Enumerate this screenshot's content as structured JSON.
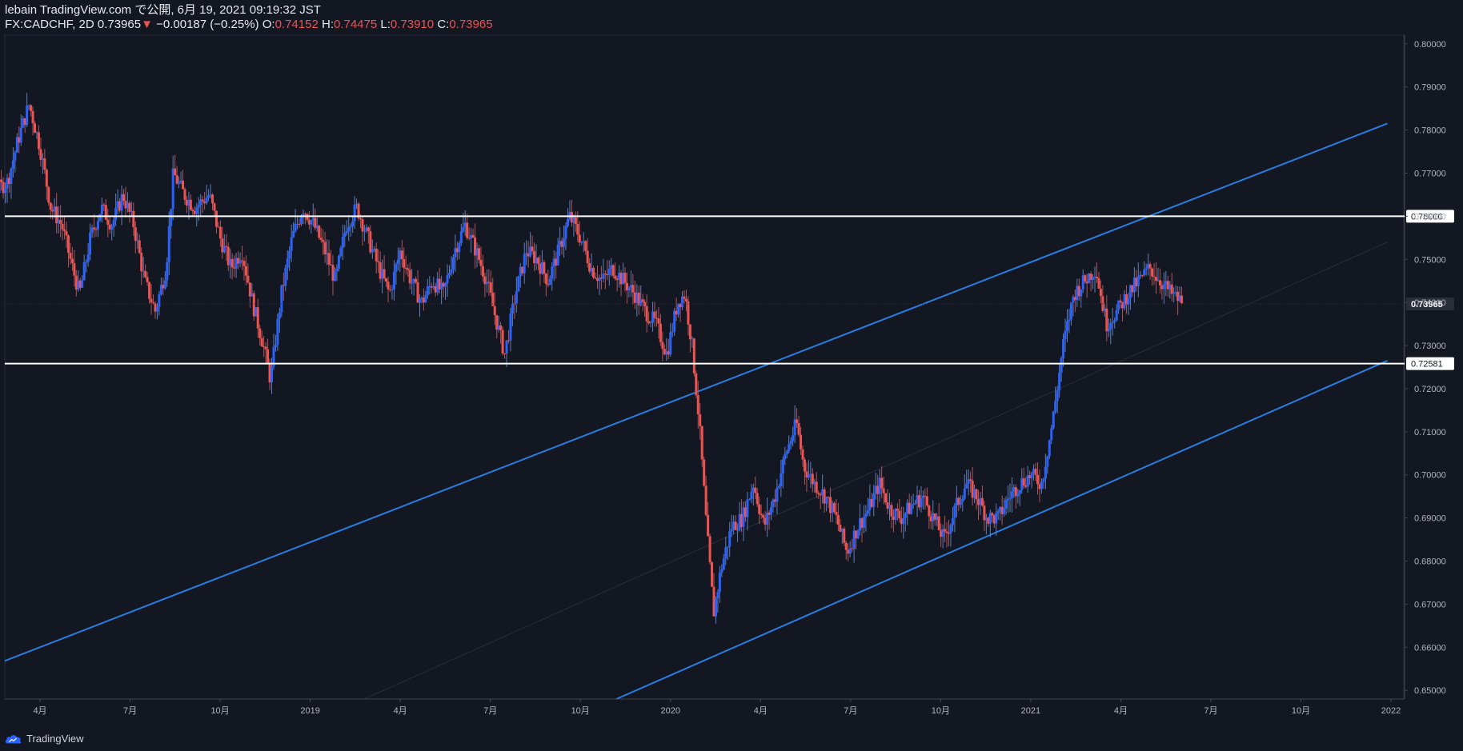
{
  "header": {
    "published": "lebain TradingView.com で公開, 6月 19, 2021 09:19:32 JST",
    "symbol": "FX:CADCHF, 2D",
    "last": "0.73965",
    "change_arrow": "▼",
    "change": "−0.00187 (−0.25%)",
    "o_label": "O:",
    "o_value": "0.74152",
    "h_label": "H:",
    "h_value": "0.74475",
    "l_label": "L:",
    "l_value": "0.73910",
    "c_label": "C:",
    "c_value": "0.73965"
  },
  "footer": {
    "brand": "TradingView"
  },
  "colors": {
    "background": "#131722",
    "up": "#2962ff",
    "down": "#ef5350",
    "trendline": "#2a7de1",
    "level_line": "#ffffff",
    "axis_text": "#b2b5be"
  },
  "chart_data": {
    "type": "candlestick",
    "symbol": "FX:CADCHF",
    "interval": "2D",
    "ylim": [
      0.648,
      0.802
    ],
    "y_ticks": [
      "0.80000",
      "0.79000",
      "0.78000",
      "0.77000",
      "0.76000",
      "0.75000",
      "0.74000",
      "0.73000",
      "0.72000",
      "0.71000",
      "0.70000",
      "0.69000",
      "0.68000",
      "0.67000",
      "0.66000",
      "0.65000"
    ],
    "x_ticks": [
      {
        "label": "4月",
        "t": 0.25
      },
      {
        "label": "7月",
        "t": 0.5
      },
      {
        "label": "10月",
        "t": 0.75
      },
      {
        "label": "2019",
        "t": 1.0
      },
      {
        "label": "4月",
        "t": 1.25
      },
      {
        "label": "7月",
        "t": 1.5
      },
      {
        "label": "10月",
        "t": 1.75
      },
      {
        "label": "2020",
        "t": 2.0
      },
      {
        "label": "4月",
        "t": 2.25
      },
      {
        "label": "7月",
        "t": 2.5
      },
      {
        "label": "10月",
        "t": 2.75
      },
      {
        "label": "2021",
        "t": 3.0
      },
      {
        "label": "4月",
        "t": 3.25
      },
      {
        "label": "7月",
        "t": 3.5
      },
      {
        "label": "10月",
        "t": 3.75
      },
      {
        "label": "2022",
        "t": 4.0
      }
    ],
    "horizontal_levels": [
      {
        "label": "0.76000",
        "value": 0.76
      },
      {
        "label": "0.72581",
        "value": 0.72581
      }
    ],
    "last_price": {
      "label": "0.73965",
      "value": 0.73965
    },
    "trendlines": [
      {
        "name": "channel-upper",
        "t1": -0.12,
        "v1": 0.648,
        "t2": 3.99,
        "v2": 0.7815
      },
      {
        "name": "channel-lower",
        "t1": 1.85,
        "v1": 0.648,
        "t2": 3.99,
        "v2": 0.7265
      },
      {
        "name": "channel-mid",
        "t1": 1.15,
        "v1": 0.648,
        "t2": 3.99,
        "v2": 0.754
      }
    ],
    "price_path": [
      [
        0.0,
        0.74
      ],
      [
        0.03,
        0.728
      ],
      [
        0.07,
        0.742
      ],
      [
        0.11,
        0.765
      ],
      [
        0.16,
        0.768
      ],
      [
        0.19,
        0.778
      ],
      [
        0.22,
        0.786
      ],
      [
        0.25,
        0.776
      ],
      [
        0.28,
        0.762
      ],
      [
        0.31,
        0.758
      ],
      [
        0.34,
        0.748
      ],
      [
        0.36,
        0.742
      ],
      [
        0.39,
        0.755
      ],
      [
        0.42,
        0.762
      ],
      [
        0.45,
        0.758
      ],
      [
        0.48,
        0.765
      ],
      [
        0.51,
        0.758
      ],
      [
        0.54,
        0.745
      ],
      [
        0.57,
        0.738
      ],
      [
        0.6,
        0.748
      ],
      [
        0.62,
        0.77
      ],
      [
        0.65,
        0.765
      ],
      [
        0.68,
        0.762
      ],
      [
        0.72,
        0.765
      ],
      [
        0.75,
        0.755
      ],
      [
        0.78,
        0.748
      ],
      [
        0.81,
        0.752
      ],
      [
        0.84,
        0.74
      ],
      [
        0.87,
        0.73
      ],
      [
        0.89,
        0.722
      ],
      [
        0.92,
        0.742
      ],
      [
        0.95,
        0.755
      ],
      [
        0.98,
        0.762
      ],
      [
        1.01,
        0.758
      ],
      [
        1.04,
        0.752
      ],
      [
        1.07,
        0.745
      ],
      [
        1.1,
        0.758
      ],
      [
        1.13,
        0.762
      ],
      [
        1.16,
        0.755
      ],
      [
        1.19,
        0.748
      ],
      [
        1.22,
        0.742
      ],
      [
        1.25,
        0.752
      ],
      [
        1.28,
        0.745
      ],
      [
        1.31,
        0.74
      ],
      [
        1.34,
        0.745
      ],
      [
        1.37,
        0.742
      ],
      [
        1.4,
        0.752
      ],
      [
        1.43,
        0.758
      ],
      [
        1.46,
        0.752
      ],
      [
        1.49,
        0.745
      ],
      [
        1.51,
        0.738
      ],
      [
        1.54,
        0.728
      ],
      [
        1.57,
        0.742
      ],
      [
        1.6,
        0.752
      ],
      [
        1.63,
        0.75
      ],
      [
        1.66,
        0.745
      ],
      [
        1.69,
        0.752
      ],
      [
        1.72,
        0.76
      ],
      [
        1.75,
        0.755
      ],
      [
        1.78,
        0.748
      ],
      [
        1.81,
        0.745
      ],
      [
        1.84,
        0.748
      ],
      [
        1.87,
        0.745
      ],
      [
        1.9,
        0.742
      ],
      [
        1.93,
        0.738
      ],
      [
        1.96,
        0.735
      ],
      [
        1.99,
        0.728
      ],
      [
        2.02,
        0.74
      ],
      [
        2.04,
        0.742
      ],
      [
        2.06,
        0.73
      ],
      [
        2.08,
        0.712
      ],
      [
        2.1,
        0.688
      ],
      [
        2.12,
        0.668
      ],
      [
        2.14,
        0.678
      ],
      [
        2.17,
        0.688
      ],
      [
        2.2,
        0.69
      ],
      [
        2.23,
        0.698
      ],
      [
        2.26,
        0.688
      ],
      [
        2.29,
        0.695
      ],
      [
        2.32,
        0.705
      ],
      [
        2.35,
        0.712
      ],
      [
        2.37,
        0.702
      ],
      [
        2.4,
        0.698
      ],
      [
        2.43,
        0.695
      ],
      [
        2.46,
        0.69
      ],
      [
        2.49,
        0.682
      ],
      [
        2.52,
        0.688
      ],
      [
        2.55,
        0.692
      ],
      [
        2.58,
        0.698
      ],
      [
        2.61,
        0.692
      ],
      [
        2.64,
        0.69
      ],
      [
        2.67,
        0.693
      ],
      [
        2.7,
        0.695
      ],
      [
        2.73,
        0.69
      ],
      [
        2.76,
        0.685
      ],
      [
        2.79,
        0.692
      ],
      [
        2.82,
        0.698
      ],
      [
        2.85,
        0.695
      ],
      [
        2.88,
        0.69
      ],
      [
        2.91,
        0.69
      ],
      [
        2.94,
        0.695
      ],
      [
        2.97,
        0.698
      ],
      [
        3.0,
        0.7
      ],
      [
        3.03,
        0.698
      ],
      [
        3.06,
        0.712
      ],
      [
        3.09,
        0.73
      ],
      [
        3.12,
        0.742
      ],
      [
        3.15,
        0.745
      ],
      [
        3.18,
        0.748
      ],
      [
        3.21,
        0.735
      ],
      [
        3.24,
        0.738
      ],
      [
        3.27,
        0.742
      ],
      [
        3.3,
        0.745
      ],
      [
        3.33,
        0.748
      ],
      [
        3.36,
        0.745
      ],
      [
        3.39,
        0.742
      ],
      [
        3.42,
        0.74
      ]
    ]
  }
}
